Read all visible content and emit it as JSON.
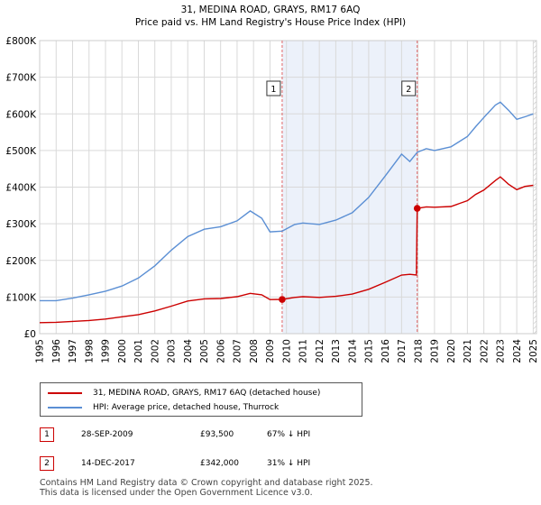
{
  "chart_data": {
    "type": "line",
    "title": "31, MEDINA ROAD, GRAYS, RM17 6AQ",
    "subtitle": "Price paid vs. HM Land Registry's House Price Index (HPI)",
    "xlim": [
      1995,
      2025.2
    ],
    "ylim": [
      0,
      800000
    ],
    "x_ticks": [
      1995,
      1996,
      1997,
      1998,
      1999,
      2000,
      2001,
      2002,
      2003,
      2004,
      2005,
      2006,
      2007,
      2008,
      2009,
      2010,
      2011,
      2012,
      2013,
      2014,
      2015,
      2016,
      2017,
      2018,
      2019,
      2020,
      2021,
      2022,
      2023,
      2024,
      2025
    ],
    "y_ticks": [
      {
        "value": 0,
        "label": "£0"
      },
      {
        "value": 100000,
        "label": "£100K"
      },
      {
        "value": 200000,
        "label": "£200K"
      },
      {
        "value": 300000,
        "label": "£300K"
      },
      {
        "value": 400000,
        "label": "£400K"
      },
      {
        "value": 500000,
        "label": "£500K"
      },
      {
        "value": 600000,
        "label": "£600K"
      },
      {
        "value": 700000,
        "label": "£700K"
      },
      {
        "value": 800000,
        "label": "£800K"
      }
    ],
    "colors": {
      "property": "#cc0000",
      "hpi": "#5b8fd4",
      "shade": "#dce6f5",
      "grid": "#d9d9d9",
      "vline": "#e06666"
    },
    "series": [
      {
        "name": "31, MEDINA ROAD, GRAYS, RM17 6AQ (detached house)",
        "color": "#cc0000",
        "points": [
          [
            1995.0,
            30000
          ],
          [
            1996.0,
            31000
          ],
          [
            1997.0,
            33500
          ],
          [
            1998.0,
            36000
          ],
          [
            1999.0,
            40000
          ],
          [
            2000.0,
            46000
          ],
          [
            2001.0,
            52000
          ],
          [
            2002.0,
            62000
          ],
          [
            2003.0,
            75000
          ],
          [
            2004.0,
            89000
          ],
          [
            2005.0,
            95000
          ],
          [
            2006.0,
            96000
          ],
          [
            2007.0,
            101000
          ],
          [
            2007.8,
            110000
          ],
          [
            2008.5,
            106000
          ],
          [
            2009.0,
            93000
          ],
          [
            2009.74,
            93500
          ],
          [
            2010.5,
            99000
          ],
          [
            2011.0,
            101000
          ],
          [
            2012.0,
            99000
          ],
          [
            2013.0,
            102000
          ],
          [
            2014.0,
            108000
          ],
          [
            2015.0,
            121000
          ],
          [
            2016.0,
            140000
          ],
          [
            2017.0,
            160000
          ],
          [
            2017.5,
            162000
          ],
          [
            2017.9,
            160000
          ],
          [
            2017.95,
            342000
          ],
          [
            2018.5,
            346000
          ],
          [
            2019.0,
            345000
          ],
          [
            2020.0,
            347000
          ],
          [
            2021.0,
            363000
          ],
          [
            2021.5,
            380000
          ],
          [
            2022.0,
            392000
          ],
          [
            2022.7,
            418000
          ],
          [
            2023.0,
            428000
          ],
          [
            2023.5,
            408000
          ],
          [
            2024.0,
            393000
          ],
          [
            2024.5,
            402000
          ],
          [
            2025.0,
            405000
          ]
        ]
      },
      {
        "name": "HPI: Average price, detached house, Thurrock",
        "color": "#5b8fd4",
        "points": [
          [
            1995.0,
            90000
          ],
          [
            1996.0,
            90000
          ],
          [
            1997.0,
            97000
          ],
          [
            1998.0,
            106000
          ],
          [
            1999.0,
            116000
          ],
          [
            2000.0,
            130000
          ],
          [
            2001.0,
            152000
          ],
          [
            2002.0,
            185000
          ],
          [
            2003.0,
            228000
          ],
          [
            2004.0,
            265000
          ],
          [
            2005.0,
            285000
          ],
          [
            2006.0,
            292000
          ],
          [
            2007.0,
            308000
          ],
          [
            2007.8,
            335000
          ],
          [
            2008.5,
            315000
          ],
          [
            2009.0,
            278000
          ],
          [
            2009.74,
            280000
          ],
          [
            2010.5,
            298000
          ],
          [
            2011.0,
            302000
          ],
          [
            2012.0,
            298000
          ],
          [
            2013.0,
            310000
          ],
          [
            2014.0,
            330000
          ],
          [
            2015.0,
            372000
          ],
          [
            2016.0,
            430000
          ],
          [
            2017.0,
            490000
          ],
          [
            2017.5,
            470000
          ],
          [
            2017.95,
            495000
          ],
          [
            2018.5,
            505000
          ],
          [
            2019.0,
            500000
          ],
          [
            2020.0,
            510000
          ],
          [
            2021.0,
            538000
          ],
          [
            2021.5,
            565000
          ],
          [
            2022.0,
            590000
          ],
          [
            2022.7,
            624000
          ],
          [
            2023.0,
            632000
          ],
          [
            2023.5,
            610000
          ],
          [
            2024.0,
            585000
          ],
          [
            2024.5,
            592000
          ],
          [
            2025.0,
            600000
          ]
        ]
      }
    ],
    "sales": [
      {
        "id": "1",
        "x": 2009.74,
        "value": 93500
      },
      {
        "id": "2",
        "x": 2017.95,
        "value": 342000
      }
    ]
  },
  "legend": {
    "property_label": "31, MEDINA ROAD, GRAYS, RM17 6AQ (detached house)",
    "hpi_label": "HPI: Average price, detached house, Thurrock"
  },
  "sales_table": [
    {
      "id": "1",
      "date": "28-SEP-2009",
      "price": "£93,500",
      "hpi": "67% ↓ HPI"
    },
    {
      "id": "2",
      "date": "14-DEC-2017",
      "price": "£342,000",
      "hpi": "31% ↓ HPI"
    }
  ],
  "footer": {
    "line1": "Contains HM Land Registry data © Crown copyright and database right 2025.",
    "line2": "This data is licensed under the Open Government Licence v3.0."
  }
}
